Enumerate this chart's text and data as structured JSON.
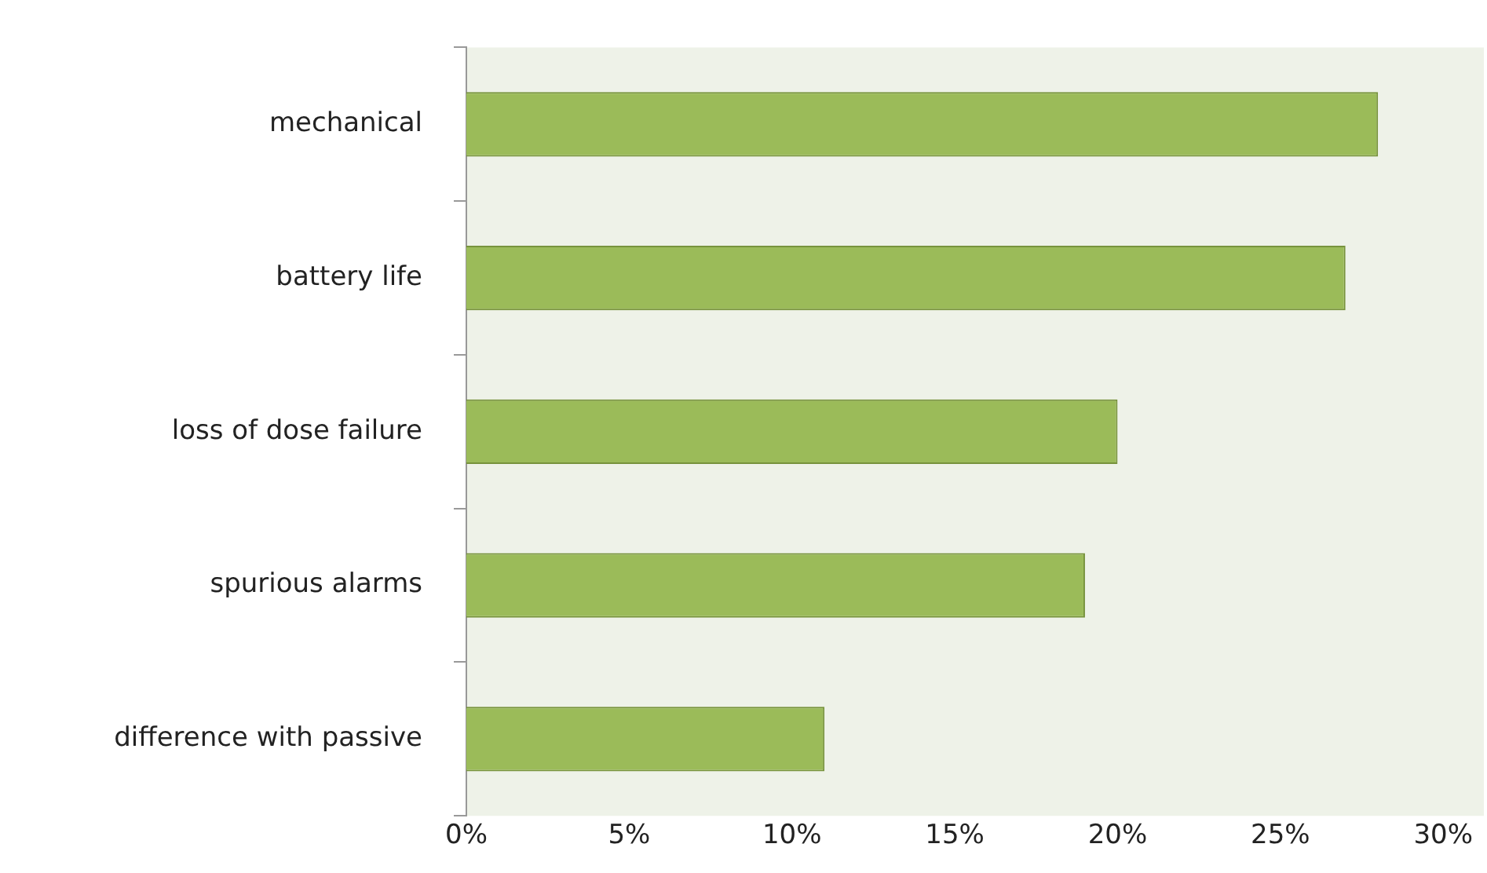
{
  "chart_data": {
    "type": "bar",
    "orientation": "horizontal",
    "categories": [
      "mechanical",
      "battery life",
      "loss of dose failure",
      "spurious alarms",
      "difference with passive"
    ],
    "values": [
      28,
      27,
      20,
      19,
      11
    ],
    "color": "#9bbb59",
    "xlim": [
      0,
      31.25
    ],
    "xticks": [
      {
        "value": 0,
        "label": "0%"
      },
      {
        "value": 5,
        "label": "5%"
      },
      {
        "value": 10,
        "label": "10%"
      },
      {
        "value": 15,
        "label": "15%"
      },
      {
        "value": 20,
        "label": "20%"
      },
      {
        "value": 25,
        "label": "25%"
      },
      {
        "value": 30,
        "label": "30%"
      }
    ],
    "grid": false,
    "legend": false
  }
}
